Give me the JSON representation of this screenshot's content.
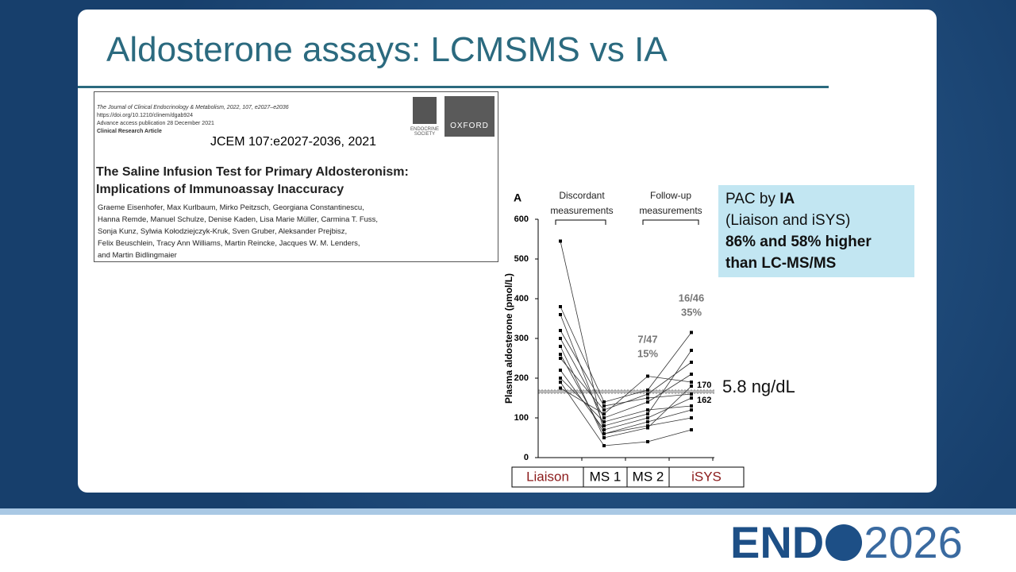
{
  "slide": {
    "title": "Aldosterone assays: LCMSMS vs IA"
  },
  "citation": {
    "journal": [
      "The Journal of Clinical Endocrinology & Metabolism, 2022, 107, e2027–e2036",
      "https://doi.org/10.1210/clinem/dgab924",
      "Advance access publication 28 December 2021",
      "Clinical Research Article"
    ],
    "society_logo": "ENDOCRINE SOCIETY",
    "publisher_logo": "OXFORD",
    "reference": "JCEM 107:e2027-2036, 2021",
    "article_title": [
      "The Saline Infusion Test for Primary Aldosteronism:",
      "Implications of Immunoassay Inaccuracy"
    ],
    "authors": [
      "Graeme Eisenhofer, Max Kurlbaum, Mirko Peitzsch, Georgiana Constantinescu,",
      "Hanna Remde, Manuel Schulze, Denise Kaden, Lisa Marie Müller, Carmina T. Fuss,",
      "Sonja Kunz, Sylwia Kołodziejczyk-Kruk, Sven Gruber, Aleksander Prejbisz,",
      "Felix Beuschlein, Tracy Ann Williams, Martin Reincke, Jacques W. M. Lenders,",
      "and Martin Bidlingmaier"
    ]
  },
  "chart_data": {
    "type": "line",
    "panel_label": "A",
    "y_label": "Plasma aldosterone (pmol/L)",
    "group_labels": [
      "Discordant measurements",
      "Follow-up measurements"
    ],
    "categories": [
      "Liaison",
      "MS 1",
      "MS 2",
      "iSYS"
    ],
    "ylim": [
      0,
      600
    ],
    "yticks": [
      0,
      100,
      200,
      300,
      400,
      500,
      600
    ],
    "reference_band": [
      162,
      170
    ],
    "annotations": [
      [
        "7/47",
        "15%"
      ],
      [
        "16/46",
        "35%"
      ]
    ],
    "color": "#333333",
    "series": [
      {
        "values": [
          545,
          60,
          90,
          120
        ]
      },
      {
        "values": [
          380,
          140,
          170,
          315
        ]
      },
      {
        "values": [
          360,
          80,
          110,
          270
        ]
      },
      {
        "values": [
          300,
          100,
          140,
          210
        ]
      },
      {
        "values": [
          280,
          50,
          75,
          180
        ]
      },
      {
        "values": [
          250,
          120,
          160,
          240
        ]
      },
      {
        "values": [
          220,
          70,
          100,
          150
        ]
      },
      {
        "values": [
          200,
          90,
          120,
          130
        ]
      },
      {
        "values": [
          190,
          30,
          40,
          70
        ]
      },
      {
        "values": [
          175,
          110,
          205,
          190
        ]
      },
      {
        "values": [
          260,
          60,
          80,
          100
        ]
      },
      {
        "values": [
          320,
          130,
          150,
          160
        ]
      }
    ]
  },
  "callout": {
    "line1": [
      "PAC by ",
      "IA"
    ],
    "line2": "(Liaison and iSYS)",
    "line3": "86% and 58% higher",
    "line4": "than LC-MS/MS"
  },
  "threshold_label": "5.8 ng/dL",
  "footer": {
    "logo": "END",
    "year": "2026"
  }
}
